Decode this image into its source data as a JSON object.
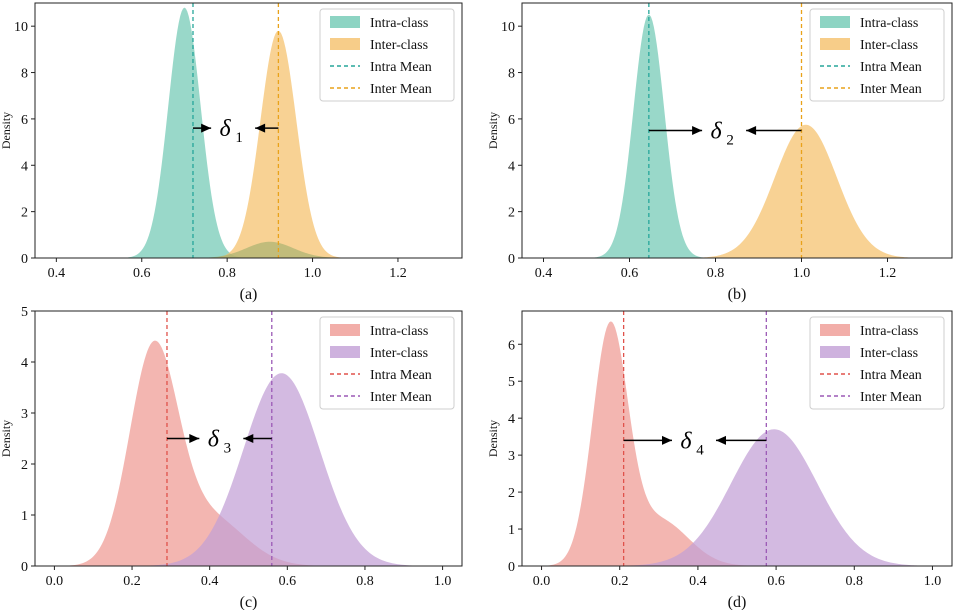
{
  "chart_data": [
    {
      "type": "area",
      "id": "a",
      "subtitle": "(a)",
      "ylabel": "Density",
      "xlim": [
        0.35,
        1.35
      ],
      "ylim": [
        0,
        11
      ],
      "xticks": [
        0.4,
        0.6,
        0.8,
        1.0,
        1.2
      ],
      "xtick_labels": [
        "0.4",
        "0.6",
        "0.8",
        "1.0",
        "1.2"
      ],
      "yticks": [
        0,
        2,
        4,
        6,
        8,
        10
      ],
      "ytick_labels": [
        "0",
        "2",
        "4",
        "6",
        "8",
        "10"
      ],
      "legend_position": "top-right",
      "series": [
        {
          "name": "Intra-class",
          "color": "#71c9b4",
          "components": [
            {
              "mean": 0.7,
              "sd": 0.038,
              "peak": 10.8
            }
          ]
        },
        {
          "name": "Inter-class",
          "color": "#f5c16b",
          "components": [
            {
              "mean": 0.92,
              "sd": 0.042,
              "peak": 9.8
            }
          ]
        }
      ],
      "overlap_bump": {
        "mean": 0.9,
        "sd": 0.055,
        "peak": 0.7,
        "color": "#9cae6a"
      },
      "intra_mean": 0.72,
      "inter_mean": 0.92,
      "mean_colors": {
        "intra": "#26a69a",
        "inter": "#e9a21a"
      },
      "legend": {
        "intra": "Intra-class",
        "inter": "Inter-class",
        "intra_mean": "Intra Mean",
        "inter_mean": "Inter Mean"
      },
      "delta": {
        "symbol": "δ",
        "index": "1",
        "y": 5.6,
        "label_x": 0.814
      }
    },
    {
      "type": "area",
      "id": "b",
      "subtitle": "(b)",
      "ylabel": "Density",
      "xlim": [
        0.35,
        1.35
      ],
      "ylim": [
        0,
        11
      ],
      "xticks": [
        0.4,
        0.6,
        0.8,
        1.0,
        1.2
      ],
      "xtick_labels": [
        "0.4",
        "0.6",
        "0.8",
        "1.0",
        "1.2"
      ],
      "yticks": [
        0,
        2,
        4,
        6,
        8,
        10
      ],
      "ytick_labels": [
        "0",
        "2",
        "4",
        "6",
        "8",
        "10"
      ],
      "legend_position": "top-right",
      "series": [
        {
          "name": "Intra-class",
          "color": "#71c9b4",
          "components": [
            {
              "mean": 0.645,
              "sd": 0.036,
              "peak": 10.5
            }
          ]
        },
        {
          "name": "Inter-class",
          "color": "#f5c16b",
          "components": [
            {
              "mean": 1.01,
              "sd": 0.072,
              "peak": 5.75
            }
          ]
        }
      ],
      "overlap_bump": null,
      "intra_mean": 0.645,
      "inter_mean": 1.0,
      "mean_colors": {
        "intra": "#26a69a",
        "inter": "#e9a21a"
      },
      "legend": {
        "intra": "Intra-class",
        "inter": "Inter-class",
        "intra_mean": "Intra Mean",
        "inter_mean": "Inter Mean"
      },
      "delta": {
        "symbol": "δ",
        "index": "2",
        "y": 5.5,
        "label_x": 0.82
      }
    },
    {
      "type": "area",
      "id": "c",
      "subtitle": "(c)",
      "ylabel": "Density",
      "xlim": [
        -0.05,
        1.05
      ],
      "ylim": [
        0,
        5
      ],
      "xticks": [
        0.0,
        0.2,
        0.4,
        0.6,
        0.8,
        1.0
      ],
      "xtick_labels": [
        "0.0",
        "0.2",
        "0.4",
        "0.6",
        "0.8",
        "1.0"
      ],
      "yticks": [
        0,
        1,
        2,
        3,
        4,
        5
      ],
      "ytick_labels": [
        "0",
        "1",
        "2",
        "3",
        "4",
        "5"
      ],
      "legend_position": "top-right",
      "series": [
        {
          "name": "Intra-class",
          "color": "#ef9a93",
          "components": [
            {
              "mean": 0.255,
              "sd": 0.062,
              "peak": 4.15
            },
            {
              "mean": 0.4,
              "sd": 0.09,
              "peak": 0.95
            }
          ]
        },
        {
          "name": "Inter-class",
          "color": "#c29fd6",
          "components": [
            {
              "mean": 0.585,
              "sd": 0.098,
              "peak": 3.78
            }
          ]
        }
      ],
      "overlap_bump": null,
      "intra_mean": 0.29,
      "inter_mean": 0.56,
      "mean_colors": {
        "intra": "#e0524b",
        "inter": "#9b59b6"
      },
      "legend": {
        "intra": "Intra-class",
        "inter": "Inter-class",
        "intra_mean": "Intra Mean",
        "inter_mean": "Inter Mean"
      },
      "delta": {
        "symbol": "δ",
        "index": "3",
        "y": 2.5,
        "label_x": 0.43
      }
    },
    {
      "type": "area",
      "id": "d",
      "subtitle": "(d)",
      "ylabel": "Density",
      "xlim": [
        -0.05,
        1.05
      ],
      "ylim": [
        0,
        6.9
      ],
      "xticks": [
        0.0,
        0.2,
        0.4,
        0.6,
        0.8,
        1.0
      ],
      "xtick_labels": [
        "0.0",
        "0.2",
        "0.4",
        "0.6",
        "0.8",
        "1.0"
      ],
      "yticks": [
        0,
        1,
        2,
        3,
        4,
        5,
        6
      ],
      "ytick_labels": [
        "0",
        "1",
        "2",
        "3",
        "4",
        "5",
        "6"
      ],
      "legend_position": "top-right",
      "series": [
        {
          "name": "Intra-class",
          "color": "#ef9a93",
          "components": [
            {
              "mean": 0.175,
              "sd": 0.045,
              "peak": 6.3
            },
            {
              "mean": 0.3,
              "sd": 0.075,
              "peak": 1.25
            }
          ]
        },
        {
          "name": "Inter-class",
          "color": "#c29fd6",
          "components": [
            {
              "mean": 0.595,
              "sd": 0.11,
              "peak": 3.7
            }
          ]
        }
      ],
      "overlap_bump": null,
      "intra_mean": 0.21,
      "inter_mean": 0.575,
      "mean_colors": {
        "intra": "#e0524b",
        "inter": "#9b59b6"
      },
      "legend": {
        "intra": "Intra-class",
        "inter": "Inter-class",
        "intra_mean": "Intra Mean",
        "inter_mean": "Inter Mean"
      },
      "delta": {
        "symbol": "δ",
        "index": "4",
        "y": 3.4,
        "label_x": 0.39
      }
    }
  ]
}
